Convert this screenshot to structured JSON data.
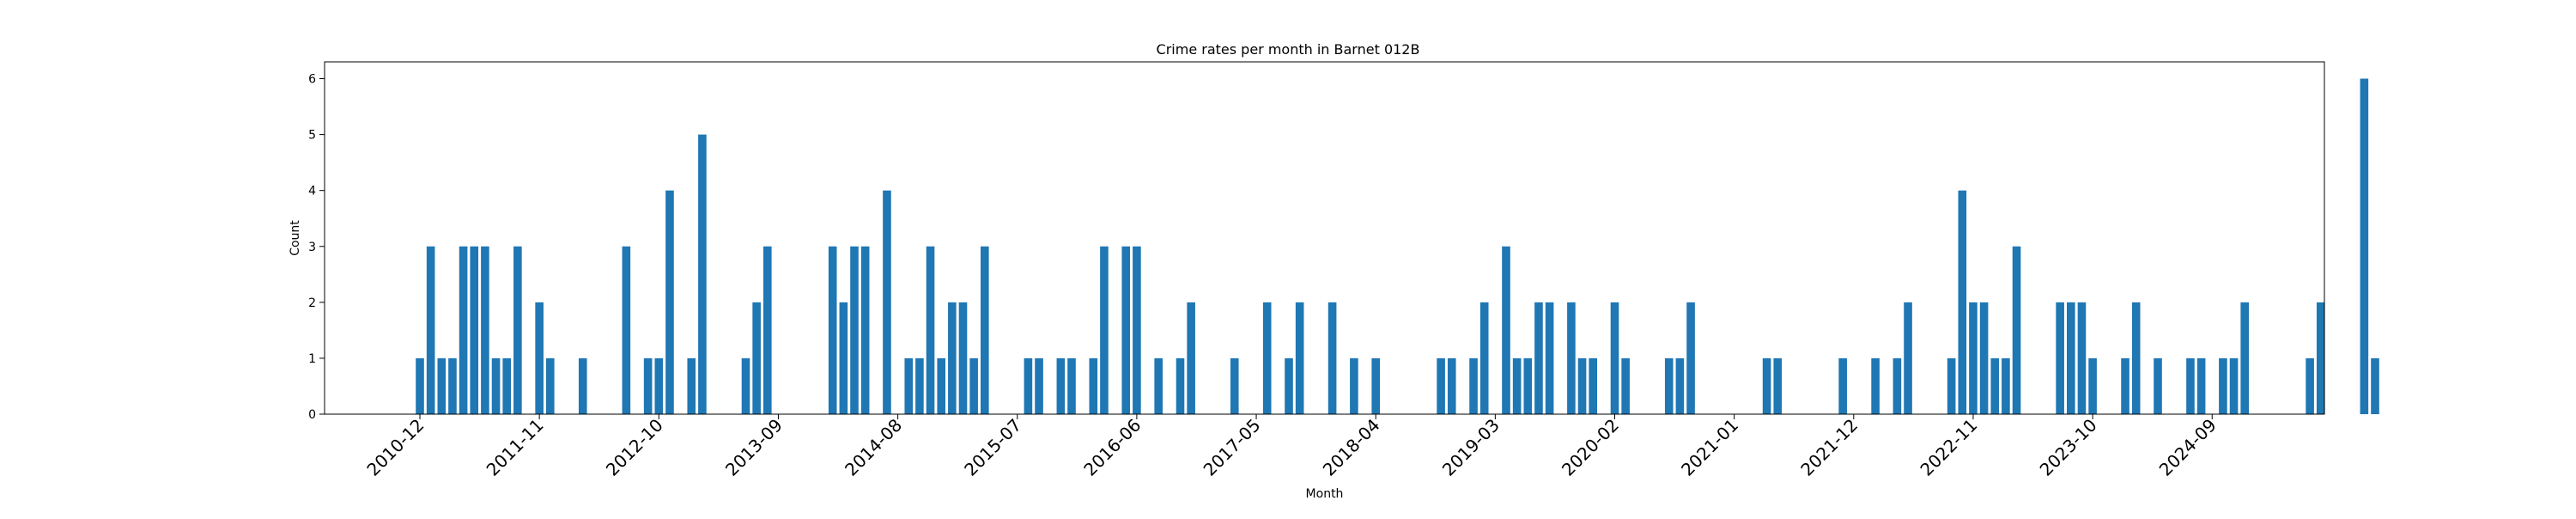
{
  "chart_data": {
    "type": "bar",
    "title": "Crime rates per month in Barnet 012B",
    "xlabel": "Month",
    "ylabel": "Count",
    "ylim": [
      0,
      6.3
    ],
    "yticks": [
      0,
      1,
      2,
      3,
      4,
      5,
      6
    ],
    "grid": false,
    "color": "#1f77b4",
    "xtick_labels": [
      "2010-12",
      "2011-11",
      "2012-10",
      "2013-09",
      "2014-08",
      "2015-07",
      "2016-06",
      "2017-05",
      "2018-04",
      "2019-03",
      "2020-02",
      "2021-01",
      "2021-12",
      "2022-11",
      "2023-10",
      "2024-09"
    ],
    "points": [
      {
        "month": "2010-12",
        "value": 1
      },
      {
        "month": "2011-01",
        "value": 3
      },
      {
        "month": "2011-02",
        "value": 1
      },
      {
        "month": "2011-03",
        "value": 1
      },
      {
        "month": "2011-04",
        "value": 3
      },
      {
        "month": "2011-05",
        "value": 3
      },
      {
        "month": "2011-06",
        "value": 3
      },
      {
        "month": "2011-07",
        "value": 1
      },
      {
        "month": "2011-08",
        "value": 1
      },
      {
        "month": "2011-09",
        "value": 3
      },
      {
        "month": "2011-11",
        "value": 2
      },
      {
        "month": "2011-12",
        "value": 1
      },
      {
        "month": "2012-03",
        "value": 1
      },
      {
        "month": "2012-07",
        "value": 3
      },
      {
        "month": "2012-09",
        "value": 1
      },
      {
        "month": "2012-10",
        "value": 1
      },
      {
        "month": "2012-11",
        "value": 4
      },
      {
        "month": "2013-01",
        "value": 1
      },
      {
        "month": "2013-02",
        "value": 5
      },
      {
        "month": "2013-06",
        "value": 1
      },
      {
        "month": "2013-07",
        "value": 2
      },
      {
        "month": "2013-08",
        "value": 3
      },
      {
        "month": "2014-02",
        "value": 3
      },
      {
        "month": "2014-03",
        "value": 2
      },
      {
        "month": "2014-04",
        "value": 3
      },
      {
        "month": "2014-05",
        "value": 3
      },
      {
        "month": "2014-07",
        "value": 4
      },
      {
        "month": "2014-09",
        "value": 1
      },
      {
        "month": "2014-10",
        "value": 1
      },
      {
        "month": "2014-11",
        "value": 3
      },
      {
        "month": "2014-12",
        "value": 1
      },
      {
        "month": "2015-01",
        "value": 2
      },
      {
        "month": "2015-02",
        "value": 2
      },
      {
        "month": "2015-03",
        "value": 1
      },
      {
        "month": "2015-04",
        "value": 3
      },
      {
        "month": "2015-08",
        "value": 1
      },
      {
        "month": "2015-09",
        "value": 1
      },
      {
        "month": "2015-11",
        "value": 1
      },
      {
        "month": "2015-12",
        "value": 1
      },
      {
        "month": "2016-02",
        "value": 1
      },
      {
        "month": "2016-03",
        "value": 3
      },
      {
        "month": "2016-05",
        "value": 3
      },
      {
        "month": "2016-06",
        "value": 3
      },
      {
        "month": "2016-08",
        "value": 1
      },
      {
        "month": "2016-10",
        "value": 1
      },
      {
        "month": "2016-11",
        "value": 2
      },
      {
        "month": "2017-03",
        "value": 1
      },
      {
        "month": "2017-06",
        "value": 2
      },
      {
        "month": "2017-08",
        "value": 1
      },
      {
        "month": "2017-09",
        "value": 2
      },
      {
        "month": "2017-12",
        "value": 2
      },
      {
        "month": "2018-02",
        "value": 1
      },
      {
        "month": "2018-04",
        "value": 1
      },
      {
        "month": "2018-10",
        "value": 1
      },
      {
        "month": "2018-11",
        "value": 1
      },
      {
        "month": "2019-01",
        "value": 1
      },
      {
        "month": "2019-02",
        "value": 2
      },
      {
        "month": "2019-04",
        "value": 3
      },
      {
        "month": "2019-05",
        "value": 1
      },
      {
        "month": "2019-06",
        "value": 1
      },
      {
        "month": "2019-07",
        "value": 2
      },
      {
        "month": "2019-08",
        "value": 2
      },
      {
        "month": "2019-10",
        "value": 2
      },
      {
        "month": "2019-11",
        "value": 1
      },
      {
        "month": "2019-12",
        "value": 1
      },
      {
        "month": "2020-02",
        "value": 2
      },
      {
        "month": "2020-03",
        "value": 1
      },
      {
        "month": "2020-07",
        "value": 1
      },
      {
        "month": "2020-08",
        "value": 1
      },
      {
        "month": "2020-09",
        "value": 2
      },
      {
        "month": "2021-04",
        "value": 1
      },
      {
        "month": "2021-05",
        "value": 1
      },
      {
        "month": "2021-11",
        "value": 1
      },
      {
        "month": "2022-02",
        "value": 1
      },
      {
        "month": "2022-04",
        "value": 1
      },
      {
        "month": "2022-05",
        "value": 2
      },
      {
        "month": "2022-09",
        "value": 1
      },
      {
        "month": "2022-10",
        "value": 4
      },
      {
        "month": "2022-11",
        "value": 2
      },
      {
        "month": "2022-12",
        "value": 2
      },
      {
        "month": "2023-01",
        "value": 1
      },
      {
        "month": "2023-02",
        "value": 1
      },
      {
        "month": "2023-03",
        "value": 3
      },
      {
        "month": "2023-07",
        "value": 2
      },
      {
        "month": "2023-08",
        "value": 2
      },
      {
        "month": "2023-09",
        "value": 2
      },
      {
        "month": "2023-10",
        "value": 1
      },
      {
        "month": "2024-01",
        "value": 1
      },
      {
        "month": "2024-02",
        "value": 2
      },
      {
        "month": "2024-04",
        "value": 1
      },
      {
        "month": "2024-07",
        "value": 1
      },
      {
        "month": "2024-08",
        "value": 1
      },
      {
        "month": "2024-10",
        "value": 1
      },
      {
        "month": "2024-11",
        "value": 1
      },
      {
        "month": "2024-12",
        "value": 2
      },
      {
        "month": "2025-06",
        "value": 1
      },
      {
        "month": "2025-07",
        "value": 2
      },
      {
        "month": "2025-11",
        "value": 6
      },
      {
        "month": "2025-12",
        "value": 1
      }
    ]
  }
}
